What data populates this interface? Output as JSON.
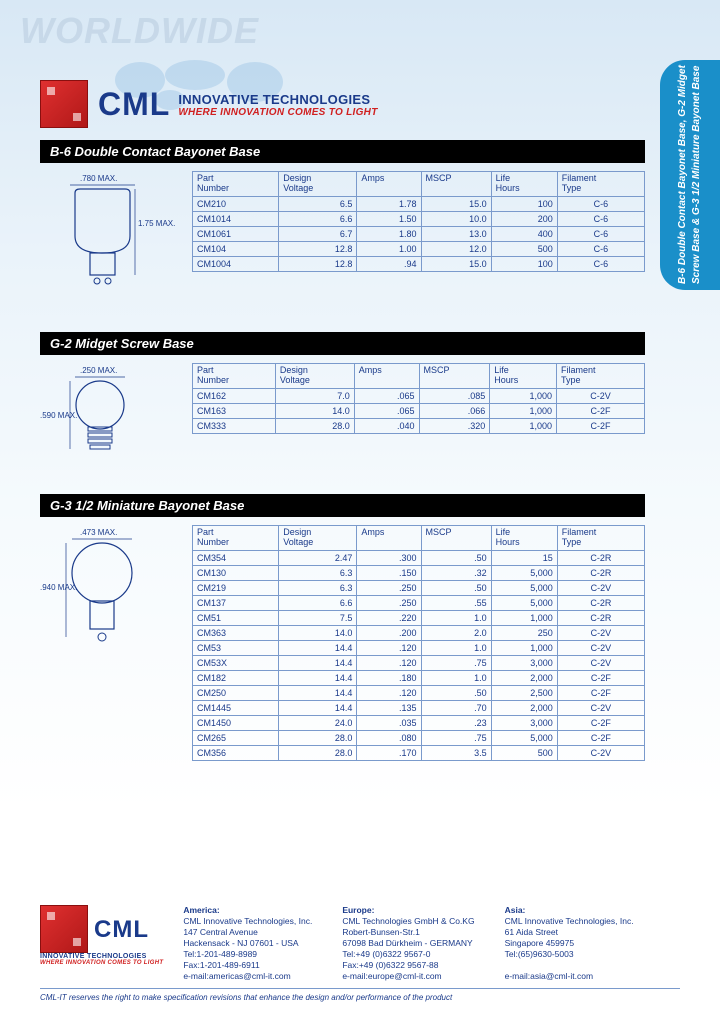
{
  "watermark": "WORLDWIDE",
  "brand": {
    "name": "CML",
    "sub1": "INNOVATIVE TECHNOLOGIES",
    "sub2": "WHERE INNOVATION COMES TO LIGHT"
  },
  "side_tab": "B-6 Double Contact Bayonet Base,\nG-2 Midget Screw Base &\nG-3 1/2 Miniature Bayonet Base",
  "colors": {
    "brand_blue": "#1a3a8a",
    "brand_red": "#d02020",
    "border": "#7a9acc",
    "tab_bg": "#1a8fc9"
  },
  "sections": [
    {
      "title": "B-6 Double Contact Bayonet Base",
      "dims": {
        "width": ".780 MAX.",
        "height": "1.75 MAX."
      },
      "columns": [
        "Part\nNumber",
        "Design\nVoltage",
        "Amps",
        "MSCP",
        "Life\nHours",
        "Filament\nType"
      ],
      "rows": [
        [
          "CM210",
          "6.5",
          "1.78",
          "15.0",
          "100",
          "C-6"
        ],
        [
          "CM1014",
          "6.6",
          "1.50",
          "10.0",
          "200",
          "C-6"
        ],
        [
          "CM1061",
          "6.7",
          "1.80",
          "13.0",
          "400",
          "C-6"
        ],
        [
          "CM104",
          "12.8",
          "1.00",
          "12.0",
          "500",
          "C-6"
        ],
        [
          "CM1004",
          "12.8",
          ".94",
          "15.0",
          "100",
          "C-6"
        ]
      ]
    },
    {
      "title": "G-2 Midget Screw Base",
      "dims": {
        "width": ".250 MAX.",
        "height": ".590 MAX."
      },
      "columns": [
        "Part\nNumber",
        "Design\nVoltage",
        "Amps",
        "MSCP",
        "Life\nHours",
        "Filament\nType"
      ],
      "rows": [
        [
          "CM162",
          "7.0",
          ".065",
          ".085",
          "1,000",
          "C-2V"
        ],
        [
          "CM163",
          "14.0",
          ".065",
          ".066",
          "1,000",
          "C-2F"
        ],
        [
          "CM333",
          "28.0",
          ".040",
          ".320",
          "1,000",
          "C-2F"
        ]
      ]
    },
    {
      "title": "G-3 1/2 Miniature Bayonet Base",
      "dims": {
        "width": ".473 MAX.",
        "height": ".940 MAX."
      },
      "columns": [
        "Part\nNumber",
        "Design\nVoltage",
        "Amps",
        "MSCP",
        "Life\nHours",
        "Filament\nType"
      ],
      "rows": [
        [
          "CM354",
          "2.47",
          ".300",
          ".50",
          "15",
          "C-2R"
        ],
        [
          "CM130",
          "6.3",
          ".150",
          ".32",
          "5,000",
          "C-2R"
        ],
        [
          "CM219",
          "6.3",
          ".250",
          ".50",
          "5,000",
          "C-2V"
        ],
        [
          "CM137",
          "6.6",
          ".250",
          ".55",
          "5,000",
          "C-2R"
        ],
        [
          "CM51",
          "7.5",
          ".220",
          "1.0",
          "1,000",
          "C-2R"
        ],
        [
          "CM363",
          "14.0",
          ".200",
          "2.0",
          "250",
          "C-2V"
        ],
        [
          "CM53",
          "14.4",
          ".120",
          "1.0",
          "1,000",
          "C-2V"
        ],
        [
          "CM53X",
          "14.4",
          ".120",
          ".75",
          "3,000",
          "C-2V"
        ],
        [
          "CM182",
          "14.4",
          ".180",
          "1.0",
          "2,000",
          "C-2F"
        ],
        [
          "CM250",
          "14.4",
          ".120",
          ".50",
          "2,500",
          "C-2F"
        ],
        [
          "CM1445",
          "14.4",
          ".135",
          ".70",
          "2,000",
          "C-2V"
        ],
        [
          "CM1450",
          "24.0",
          ".035",
          ".23",
          "3,000",
          "C-2F"
        ],
        [
          "CM265",
          "28.0",
          ".080",
          ".75",
          "5,000",
          "C-2F"
        ],
        [
          "CM356",
          "28.0",
          ".170",
          "3.5",
          "500",
          "C-2V"
        ]
      ]
    }
  ],
  "footer": {
    "america": {
      "region": "America:",
      "lines": [
        "CML Innovative Technologies, Inc.",
        "147 Central Avenue",
        "Hackensack - NJ 07601 - USA",
        "Tel:1-201-489-8989",
        "Fax:1-201-489-6911",
        "e-mail:americas@cml-it.com"
      ]
    },
    "europe": {
      "region": "Europe:",
      "lines": [
        "CML Technologies GmbH & Co.KG",
        "Robert-Bunsen-Str.1",
        "67098 Bad Dürkheim - GERMANY",
        "Tel:+49 (0)6322 9567-0",
        "Fax:+49 (0)6322 9567-88",
        "e-mail:europe@cml-it.com"
      ]
    },
    "asia": {
      "region": "Asia:",
      "lines": [
        "CML Innovative Technologies, Inc.",
        "61 Aida Street",
        "Singapore 459975",
        "Tel:(65)9630-5003",
        "",
        "e-mail:asia@cml-it.com"
      ]
    }
  },
  "disclaimer": "CML-IT reserves the right to make specification revisions that enhance the design and/or performance of the product"
}
